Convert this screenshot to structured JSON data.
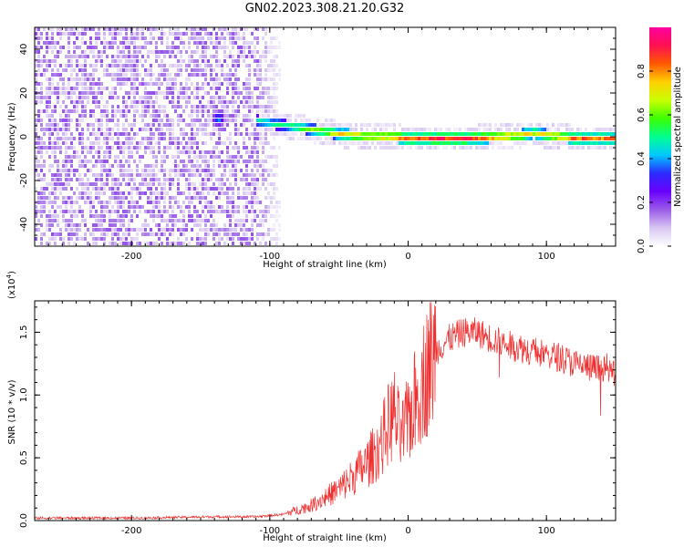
{
  "title": "GN02.2023.308.21.20.G32",
  "chart_data": [
    {
      "type": "heatmap",
      "xlabel": "Height of straight line (km)",
      "ylabel": "Frequency (Hz)",
      "xlim": [
        -270,
        150
      ],
      "ylim": [
        -50,
        50
      ],
      "xticks": [
        -200,
        -100,
        0,
        100
      ],
      "yticks": [
        -40,
        -20,
        0,
        20,
        40
      ],
      "grid": false,
      "colorbar": {
        "label": "Normalized spectral amplitude",
        "range": [
          0.0,
          1.0
        ],
        "ticks": [
          "0.0",
          "0.2",
          "0.4",
          "0.6",
          "0.8"
        ],
        "colors": [
          "#ffffff",
          "#d8c6f2",
          "#9b5ce8",
          "#6a00ff",
          "#2b2bff",
          "#00c8ff",
          "#00ff90",
          "#3cff00",
          "#c8ff00",
          "#ffd000",
          "#ff5a00",
          "#ff1050",
          "#ff00a0"
        ]
      },
      "features": {
        "noise_region_x": [
          -270,
          -90
        ],
        "noise_level": 0.15,
        "signal_trace": {
          "x": [
            -110,
            -90,
            -70,
            -50,
            -30,
            -10,
            0,
            20,
            40,
            60,
            80,
            90,
            100,
            120,
            150
          ],
          "frequency": [
            8,
            6,
            4,
            2,
            1,
            0.5,
            0,
            0,
            0,
            0.5,
            1.5,
            2.5,
            1.5,
            0,
            0
          ],
          "amplitude": [
            0.55,
            0.6,
            0.7,
            0.8,
            0.85,
            0.9,
            0.9,
            0.95,
            0.95,
            0.9,
            0.85,
            0.8,
            0.85,
            0.9,
            0.85
          ]
        },
        "blob": {
          "x": -138,
          "frequency": 9,
          "amplitude": 0.35
        }
      }
    },
    {
      "type": "line",
      "xlabel": "Height of straight line (km)",
      "ylabel": "SNR (10 * v/v)",
      "yscale_label": "(x10",
      "yscale_exp": "4",
      "yscale_close": ")",
      "xlim": [
        -270,
        150
      ],
      "ylim": [
        0,
        1.75
      ],
      "xticks": [
        -200,
        -100,
        0,
        100
      ],
      "yticks": [
        "0.0",
        "0.5",
        "1.0",
        "1.5"
      ],
      "grid": false,
      "color": "#f03030",
      "series": [
        {
          "x": [
            -270,
            -200,
            -140,
            -110,
            -90,
            -70,
            -50,
            -40,
            -30,
            -20,
            -15,
            -10,
            -5,
            0,
            10,
            20,
            30,
            40,
            50,
            60,
            70,
            80,
            90,
            100,
            110,
            120,
            130,
            140,
            150
          ],
          "values": [
            0.02,
            0.02,
            0.03,
            0.03,
            0.05,
            0.12,
            0.25,
            0.35,
            0.45,
            0.6,
            0.75,
            0.85,
            0.65,
            0.8,
            1.1,
            1.35,
            1.45,
            1.5,
            1.5,
            1.45,
            1.4,
            1.38,
            1.35,
            1.32,
            1.3,
            1.25,
            1.22,
            1.2,
            1.18
          ]
        }
      ]
    }
  ]
}
